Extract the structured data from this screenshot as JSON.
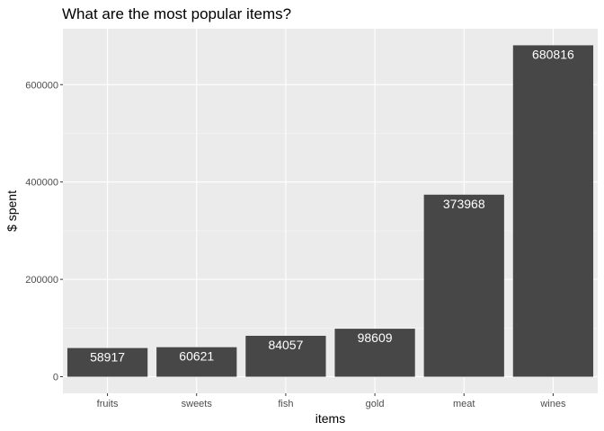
{
  "chart_data": {
    "type": "bar",
    "title": "What are the most popular items?",
    "xlabel": "items",
    "ylabel": "$ spent",
    "categories": [
      "fruits",
      "sweets",
      "fish",
      "gold",
      "meat",
      "wines"
    ],
    "values": [
      58917,
      60621,
      84057,
      98609,
      373968,
      680816
    ],
    "data_labels": [
      "58917",
      "60621",
      "84057",
      "98609",
      "373968",
      "680816"
    ],
    "ylim": [
      -34040.8,
      714856.8
    ],
    "yticks": [
      0,
      200000,
      400000,
      600000
    ],
    "ytick_labels": [
      "0",
      "200000",
      "400000",
      "600000"
    ],
    "grid": true,
    "legend": "none",
    "colors": {
      "panel": "#ebebeb",
      "grid_major": "#ffffff",
      "grid_minor": "#f5f5f5",
      "bar": "#474747",
      "label_text": "#ffffff",
      "tick_text": "#4d4d4d"
    }
  }
}
